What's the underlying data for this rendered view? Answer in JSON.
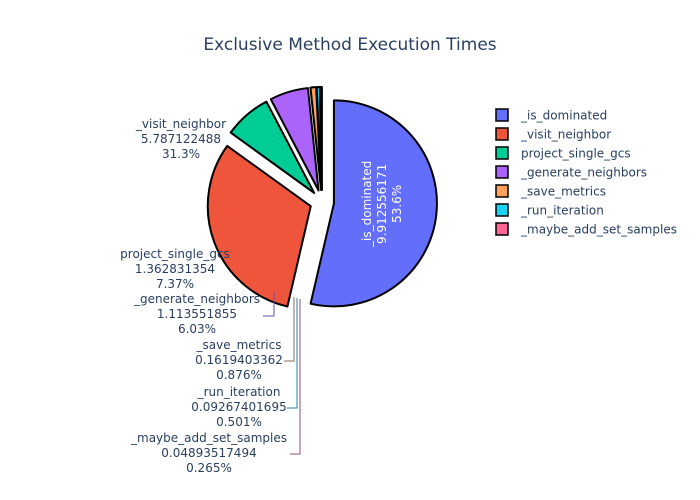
{
  "chart_data": {
    "type": "pie",
    "title": "Exclusive Method Execution Times",
    "slices": [
      {
        "label": "_is_dominated",
        "value": "9.912556171",
        "percent": "53.6%",
        "num": 9.912556171,
        "color": "#636efa"
      },
      {
        "label": "_visit_neighbor",
        "value": "5.787122488",
        "percent": "31.3%",
        "num": 5.787122488,
        "color": "#ef553b"
      },
      {
        "label": "project_single_gcs",
        "value": "1.362831354",
        "percent": "7.37%",
        "num": 1.362831354,
        "color": "#00cc96"
      },
      {
        "label": "_generate_neighbors",
        "value": "1.113551855",
        "percent": "6.03%",
        "num": 1.113551855,
        "color": "#ab63fa"
      },
      {
        "label": "_save_metrics",
        "value": "0.1619403362",
        "percent": "0.876%",
        "num": 0.1619403362,
        "color": "#ffa15a"
      },
      {
        "label": "_run_iteration",
        "value": "0.09267401695",
        "percent": "0.501%",
        "num": 0.09267401695,
        "color": "#19d3f3"
      },
      {
        "label": "_maybe_add_set_samples",
        "value": "0.04893517494",
        "percent": "0.265%",
        "num": 0.04893517494,
        "color": "#ff6692"
      }
    ],
    "legend_position": "top-right"
  }
}
